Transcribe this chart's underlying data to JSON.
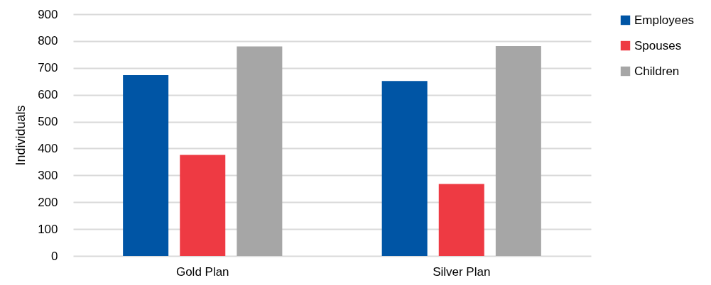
{
  "chart_data": {
    "type": "bar",
    "ylabel": "Individuals",
    "categories": [
      "Gold Plan",
      "Silver Plan"
    ],
    "series": [
      {
        "name": "Employees",
        "color": "#0055a5",
        "values": [
          673,
          651
        ]
      },
      {
        "name": "Spouses",
        "color": "#ee3a43",
        "values": [
          376,
          268
        ]
      },
      {
        "name": "Children",
        "color": "#a6a6a6",
        "values": [
          780,
          781
        ]
      }
    ],
    "ylim": [
      0,
      900
    ],
    "yticks": [
      0,
      100,
      200,
      300,
      400,
      500,
      600,
      700,
      800,
      900
    ],
    "grid": "y",
    "legend": "right"
  }
}
